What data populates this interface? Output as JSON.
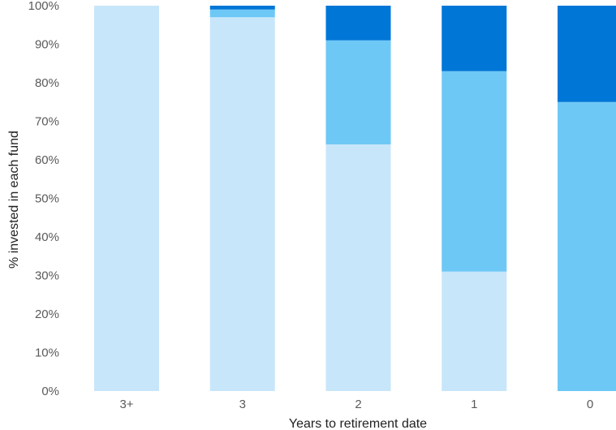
{
  "chart_data": {
    "type": "bar",
    "stacked": true,
    "title": "",
    "xlabel": "Years to retirement date",
    "ylabel": "% invested in each fund",
    "categories": [
      "3+",
      "3",
      "2",
      "1",
      "0"
    ],
    "ylim": [
      0,
      100
    ],
    "y_ticks": [
      "0%",
      "10%",
      "20%",
      "30%",
      "40%",
      "50%",
      "60%",
      "70%",
      "80%",
      "90%",
      "100%"
    ],
    "grid": false,
    "legend": "none",
    "series": [
      {
        "values": [
          100,
          97,
          64,
          31,
          0
        ],
        "color": "#c8e6fa"
      },
      {
        "values": [
          0,
          2,
          27,
          52,
          75
        ],
        "color": "#6ec8f5"
      },
      {
        "values": [
          0,
          1,
          9,
          17,
          25
        ],
        "color": "#0076d6"
      }
    ]
  }
}
